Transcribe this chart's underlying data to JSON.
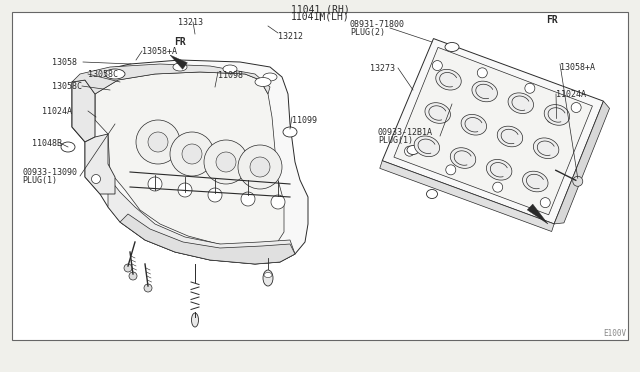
{
  "bg_color": "#f0f0eb",
  "box_bg": "#ffffff",
  "line_color": "#2a2a2a",
  "title1": "11041 (RH)",
  "title2": "11041M(LH)",
  "watermark": "E100V",
  "fig_w": 6.4,
  "fig_h": 3.72,
  "dpi": 100
}
